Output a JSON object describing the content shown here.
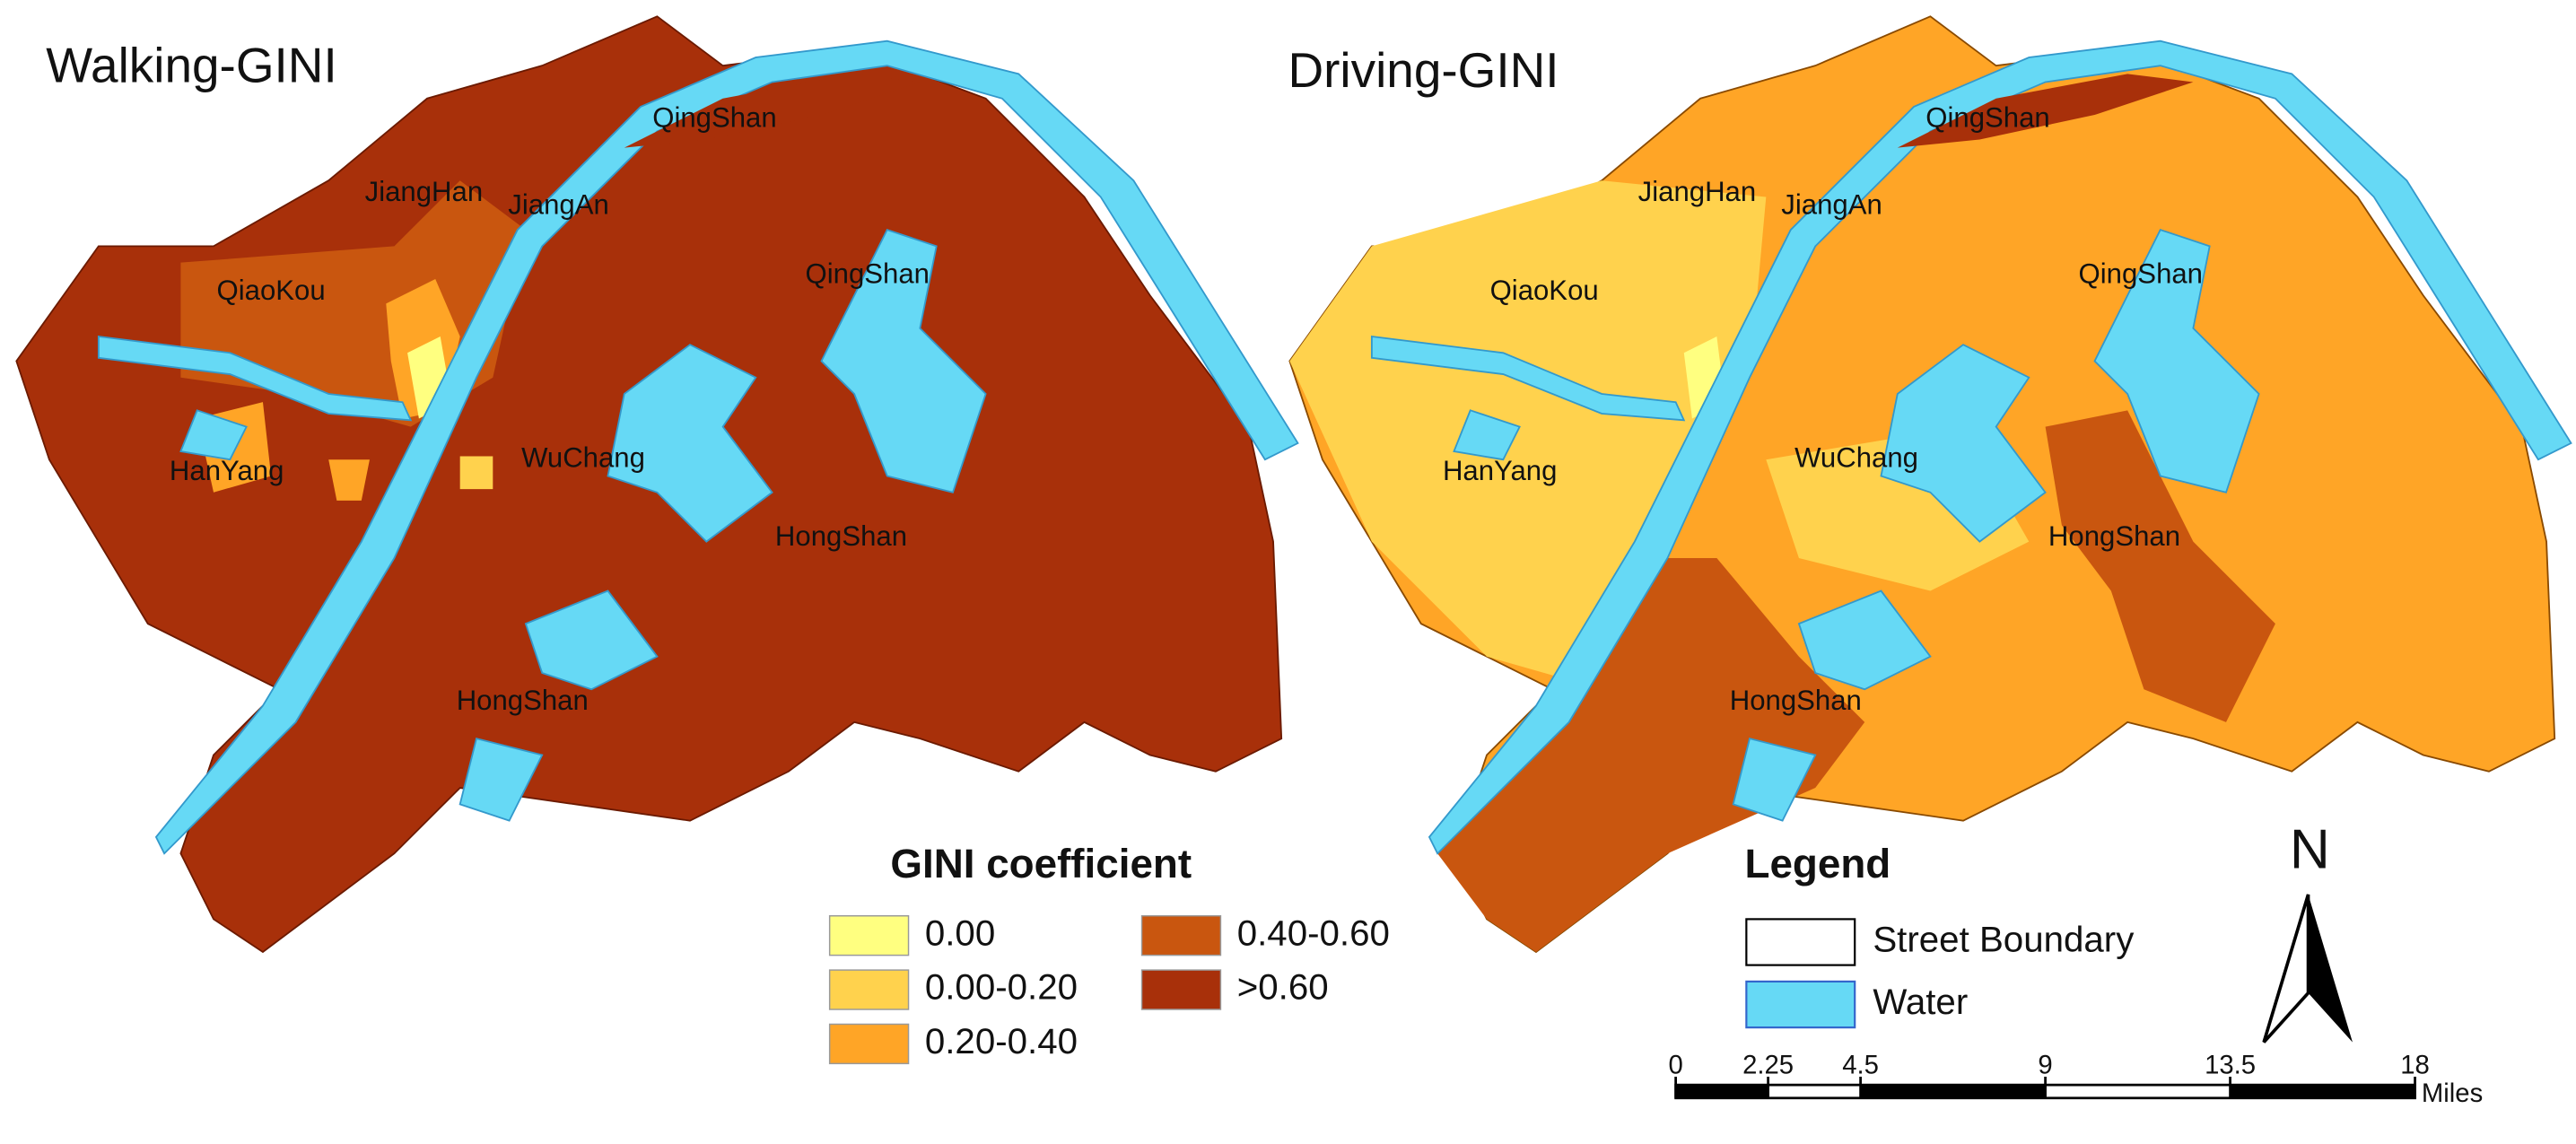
{
  "panels": [
    {
      "title": "Walking-GINI",
      "labels": [
        "QingShan",
        "JiangHan",
        "JiangAn",
        "QiaoKou",
        "QingShan",
        "HanYang",
        "WuChang",
        "HongShan",
        "HongShan"
      ]
    },
    {
      "title": "Driving-GINI",
      "labels": [
        "QingShan",
        "JiangHan",
        "JiangAn",
        "QiaoKou",
        "QingShan",
        "HanYang",
        "WuChang",
        "HongShan",
        "HongShan"
      ]
    }
  ],
  "gini_legend": {
    "title": "GINI coefficient",
    "items": [
      {
        "label": "0.00",
        "color": "#ffff80"
      },
      {
        "label": "0.00-0.20",
        "color": "#ffd24d"
      },
      {
        "label": "0.20-0.40",
        "color": "#ffa526"
      },
      {
        "label": "0.40-0.60",
        "color": "#c9560f"
      },
      {
        "label": ">0.60",
        "color": "#a8300a"
      }
    ]
  },
  "legend": {
    "title": "Legend",
    "items": [
      {
        "label": "Street Boundary",
        "color": "#ffffff"
      },
      {
        "label": "Water",
        "color": "#66d9f5"
      }
    ]
  },
  "north": "N",
  "scale_bar": {
    "ticks": [
      0,
      2.25,
      4.5,
      9,
      13.5,
      18
    ],
    "unit": "Miles"
  }
}
